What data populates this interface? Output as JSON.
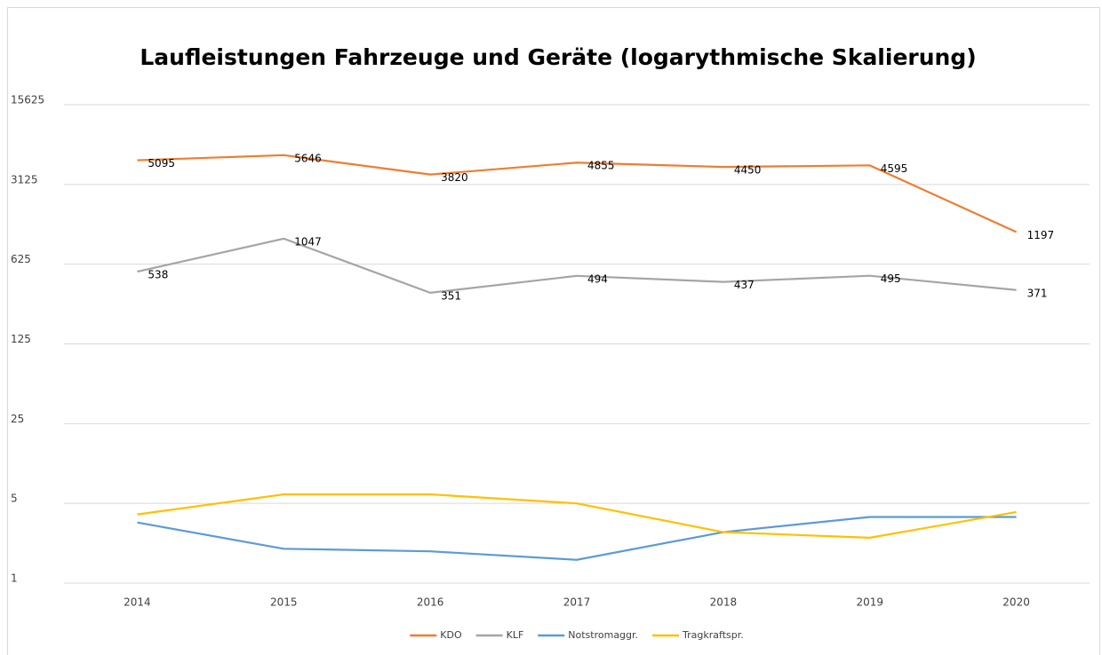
{
  "chart_data": {
    "type": "line",
    "title": "Laufleistungen Fahrzeuge und Geräte (logarythmische Skalierung)",
    "categories": [
      "2014",
      "2015",
      "2016",
      "2017",
      "2018",
      "2019",
      "2020"
    ],
    "yscale": "log",
    "ylim": [
      1,
      15625
    ],
    "yticks": [
      1,
      5,
      25,
      125,
      625,
      3125,
      15625
    ],
    "grid": true,
    "legend": "bottom",
    "series": [
      {
        "name": "KDO",
        "color": "#ed7d31",
        "data_labels": true,
        "values": [
          5095,
          5646,
          3820,
          4855,
          4450,
          4595,
          1197
        ]
      },
      {
        "name": "KLF",
        "color": "#a5a5a5",
        "data_labels": true,
        "values": [
          538,
          1047,
          351,
          494,
          437,
          495,
          371
        ]
      },
      {
        "name": "Notstromaggr.",
        "color": "#5b9bd5",
        "data_labels": false,
        "values": [
          3.4,
          2.0,
          1.9,
          1.6,
          2.8,
          3.8,
          3.8
        ]
      },
      {
        "name": "Tragkraftspr.",
        "color": "#ffc000",
        "data_labels": false,
        "values": [
          4,
          6,
          6,
          5,
          2.8,
          2.5,
          4.2
        ]
      }
    ]
  }
}
